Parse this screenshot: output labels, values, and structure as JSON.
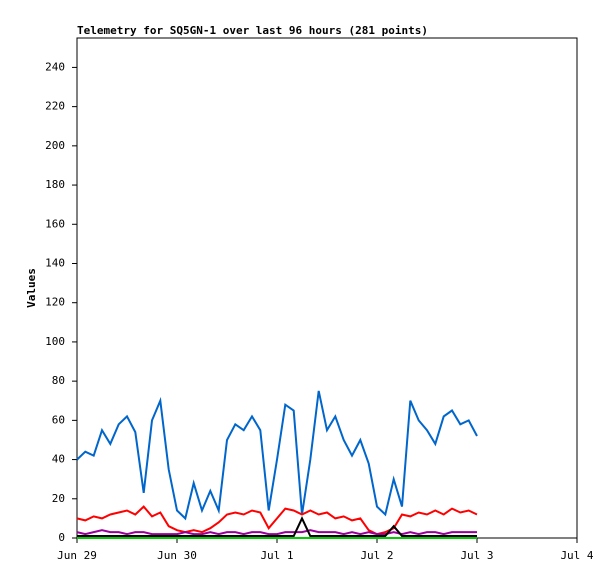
{
  "chart_data": {
    "type": "line",
    "title": "Telemetry for SQ5GN-1 over last 96 hours (281 points)",
    "y_label": "Values",
    "x": [
      0,
      2,
      4,
      6,
      8,
      10,
      12,
      14,
      16,
      18,
      20,
      22,
      24,
      26,
      28,
      30,
      32,
      34,
      36,
      38,
      40,
      42,
      44,
      46,
      48,
      50,
      52,
      54,
      56,
      58,
      60,
      62,
      64,
      66,
      68,
      70,
      72,
      74,
      76,
      78,
      80,
      82,
      84,
      86,
      88,
      90,
      92,
      94,
      96
    ],
    "xlim": [
      0,
      120
    ],
    "xticks": [
      {
        "value": 0,
        "label": "Jun 29"
      },
      {
        "value": 24,
        "label": "Jun 30"
      },
      {
        "value": 48,
        "label": "Jul 1"
      },
      {
        "value": 72,
        "label": "Jul 2"
      },
      {
        "value": 96,
        "label": "Jul 3"
      },
      {
        "value": 120,
        "label": "Jul 4"
      }
    ],
    "ylim": [
      0,
      255
    ],
    "yticks": [
      0,
      20,
      40,
      60,
      80,
      100,
      120,
      140,
      160,
      180,
      200,
      220,
      240
    ],
    "series": [
      {
        "color": "#00cc00",
        "values": [
          0,
          0,
          0,
          0,
          0,
          0,
          0,
          0,
          0,
          0,
          0,
          0,
          0,
          0,
          0,
          0,
          0,
          0,
          0,
          0,
          0,
          0,
          0,
          0,
          0,
          0,
          0,
          0,
          0,
          0,
          0,
          0,
          0,
          0,
          0,
          0,
          0,
          0,
          0,
          0,
          0,
          0,
          0,
          0,
          0,
          0,
          0,
          0,
          0
        ]
      },
      {
        "color": "#0066cc",
        "values": [
          40,
          44,
          42,
          55,
          48,
          58,
          62,
          54,
          23,
          60,
          70,
          35,
          14,
          10,
          28,
          14,
          24,
          14,
          50,
          58,
          55,
          62,
          55,
          14,
          40,
          68,
          65,
          12,
          40,
          75,
          55,
          62,
          50,
          42,
          50,
          38,
          16,
          12,
          30,
          16,
          70,
          60,
          55,
          48,
          62,
          65,
          58,
          60,
          52
        ]
      },
      {
        "color": "#ff0000",
        "values": [
          10,
          9,
          11,
          10,
          12,
          13,
          14,
          12,
          16,
          11,
          13,
          6,
          4,
          3,
          4,
          3,
          5,
          8,
          12,
          13,
          12,
          14,
          13,
          5,
          10,
          15,
          14,
          12,
          14,
          12,
          13,
          10,
          11,
          9,
          10,
          4,
          2,
          3,
          5,
          12,
          11,
          13,
          12,
          14,
          12,
          15,
          13,
          14,
          12
        ]
      },
      {
        "color": "#990099",
        "values": [
          3,
          2,
          3,
          4,
          3,
          3,
          2,
          3,
          3,
          2,
          2,
          2,
          2,
          3,
          2,
          2,
          3,
          2,
          3,
          3,
          2,
          3,
          3,
          2,
          2,
          3,
          3,
          3,
          4,
          3,
          3,
          3,
          2,
          3,
          2,
          3,
          2,
          2,
          3,
          2,
          3,
          2,
          3,
          3,
          2,
          3,
          3,
          3,
          3
        ]
      },
      {
        "color": "#000000",
        "values": [
          1,
          1,
          1,
          1,
          1,
          1,
          1,
          1,
          1,
          1,
          1,
          1,
          1,
          1,
          1,
          1,
          1,
          1,
          1,
          1,
          1,
          1,
          1,
          1,
          1,
          1,
          1,
          10,
          1,
          1,
          1,
          1,
          1,
          1,
          1,
          1,
          1,
          1,
          6,
          1,
          1,
          1,
          1,
          1,
          1,
          1,
          1,
          1,
          1
        ]
      }
    ]
  }
}
